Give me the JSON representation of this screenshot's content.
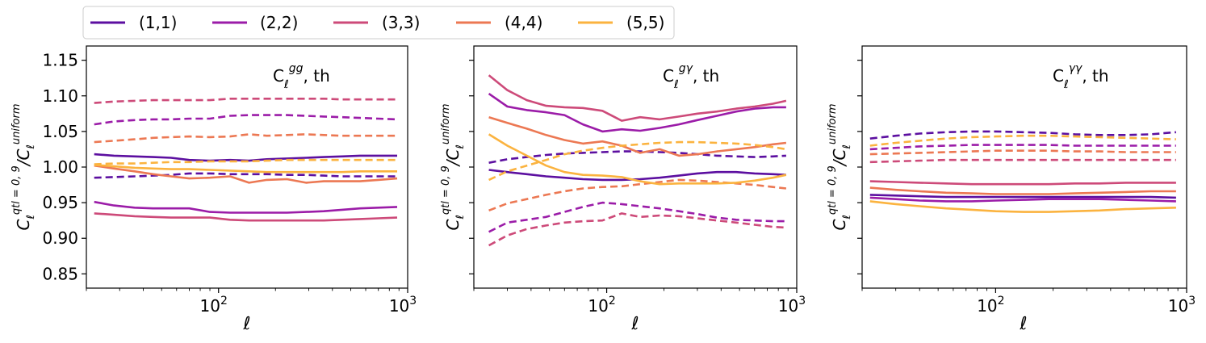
{
  "chart_data": [
    {
      "type": "line",
      "title": "C_ℓ^{gg}, th",
      "title_main": "C",
      "title_sub": "ℓ",
      "title_sup": "gg",
      "title_suffix": ", th",
      "xlabel": "ℓ",
      "ylabel_main": "C",
      "ylabel_sub": "ℓ",
      "ylabel_sup_num": "qtl = 0, 9",
      "ylabel_slash": "/C",
      "ylabel_sub2": "ℓ",
      "ylabel_sup_den": "uniform",
      "xscale": "log",
      "xlim": [
        20,
        1000
      ],
      "ylim": [
        0.83,
        1.17
      ],
      "yticks": [
        0.85,
        0.9,
        0.95,
        1.0,
        1.05,
        1.1,
        1.15
      ],
      "ytick_labels": [
        "0.85",
        "0.90",
        "0.95",
        "1.00",
        "1.05",
        "1.10",
        "1.15"
      ],
      "xtick_base": "10",
      "xtick_exps": [
        "2",
        "3"
      ],
      "x": [
        22,
        28,
        36,
        45,
        56,
        70,
        90,
        115,
        145,
        180,
        230,
        290,
        360,
        450,
        560,
        700,
        880
      ],
      "series": [
        {
          "name": "(1,1)",
          "style": "solid",
          "values": [
            1.018,
            1.016,
            1.015,
            1.014,
            1.013,
            1.01,
            1.009,
            1.01,
            1.009,
            1.011,
            1.012,
            1.013,
            1.014,
            1.015,
            1.016,
            1.016,
            1.016
          ]
        },
        {
          "name": "(1,1)",
          "style": "dashed",
          "values": [
            0.985,
            0.986,
            0.987,
            0.988,
            0.989,
            0.991,
            0.991,
            0.99,
            0.99,
            0.99,
            0.989,
            0.989,
            0.988,
            0.987,
            0.987,
            0.987,
            0.987
          ]
        },
        {
          "name": "(2,2)",
          "style": "solid",
          "values": [
            0.951,
            0.946,
            0.943,
            0.942,
            0.942,
            0.942,
            0.937,
            0.936,
            0.936,
            0.936,
            0.936,
            0.937,
            0.938,
            0.94,
            0.942,
            0.943,
            0.944
          ]
        },
        {
          "name": "(2,2)",
          "style": "dashed",
          "values": [
            1.06,
            1.064,
            1.066,
            1.067,
            1.067,
            1.068,
            1.068,
            1.072,
            1.073,
            1.073,
            1.073,
            1.072,
            1.071,
            1.07,
            1.069,
            1.068,
            1.067
          ]
        },
        {
          "name": "(3,3)",
          "style": "solid",
          "values": [
            0.935,
            0.933,
            0.931,
            0.93,
            0.929,
            0.929,
            0.929,
            0.926,
            0.925,
            0.925,
            0.925,
            0.925,
            0.925,
            0.926,
            0.927,
            0.928,
            0.929
          ]
        },
        {
          "name": "(3,3)",
          "style": "dashed",
          "values": [
            1.09,
            1.092,
            1.093,
            1.094,
            1.094,
            1.094,
            1.094,
            1.096,
            1.096,
            1.096,
            1.096,
            1.096,
            1.096,
            1.095,
            1.095,
            1.095,
            1.095
          ]
        },
        {
          "name": "(4,4)",
          "style": "solid",
          "values": [
            1.002,
            0.998,
            0.994,
            0.99,
            0.987,
            0.984,
            0.985,
            0.987,
            0.978,
            0.982,
            0.983,
            0.978,
            0.98,
            0.98,
            0.98,
            0.982,
            0.984
          ]
        },
        {
          "name": "(4,4)",
          "style": "dashed",
          "values": [
            1.035,
            1.037,
            1.039,
            1.041,
            1.042,
            1.043,
            1.042,
            1.043,
            1.046,
            1.044,
            1.045,
            1.046,
            1.045,
            1.044,
            1.044,
            1.044,
            1.044
          ]
        },
        {
          "name": "(5,5)",
          "style": "solid",
          "values": [
            1.003,
            1.001,
            0.999,
            0.998,
            0.997,
            0.997,
            0.996,
            0.995,
            0.994,
            0.993,
            0.993,
            0.993,
            0.993,
            0.993,
            0.994,
            0.994,
            0.994
          ]
        },
        {
          "name": "(5,5)",
          "style": "dashed",
          "values": [
            1.004,
            1.005,
            1.005,
            1.006,
            1.007,
            1.007,
            1.008,
            1.008,
            1.008,
            1.009,
            1.01,
            1.01,
            1.01,
            1.01,
            1.01,
            1.01,
            1.01
          ]
        }
      ]
    },
    {
      "type": "line",
      "title": "C_ℓ^{gγ}, th",
      "title_main": "C",
      "title_sub": "ℓ",
      "title_sup": "gγ",
      "title_suffix": ", th",
      "xlabel": "ℓ",
      "ylabel_main": "C",
      "ylabel_sub": "ℓ",
      "ylabel_sup_num": "qtl = 0, 9",
      "ylabel_slash": "/C",
      "ylabel_sub2": "ℓ",
      "ylabel_sup_den": "uniform",
      "xscale": "log",
      "xlim": [
        20,
        1000
      ],
      "ylim": [
        0.83,
        1.17
      ],
      "yticks": [
        0.85,
        0.9,
        0.95,
        1.0,
        1.05,
        1.1,
        1.15
      ],
      "xtick_base": "10",
      "xtick_exps": [
        "2",
        "3"
      ],
      "x": [
        24,
        30,
        38,
        48,
        60,
        75,
        95,
        120,
        150,
        190,
        240,
        300,
        380,
        480,
        600,
        750,
        880
      ],
      "series": [
        {
          "name": "(1,1)",
          "style": "solid",
          "values": [
            0.996,
            0.993,
            0.99,
            0.987,
            0.985,
            0.983,
            0.982,
            0.982,
            0.983,
            0.985,
            0.988,
            0.991,
            0.993,
            0.993,
            0.991,
            0.99,
            0.989
          ]
        },
        {
          "name": "(1,1)",
          "style": "dashed",
          "values": [
            1.006,
            1.011,
            1.014,
            1.017,
            1.019,
            1.02,
            1.021,
            1.022,
            1.022,
            1.021,
            1.02,
            1.018,
            1.016,
            1.015,
            1.014,
            1.015,
            1.016
          ]
        },
        {
          "name": "(2,2)",
          "style": "solid",
          "values": [
            1.103,
            1.085,
            1.08,
            1.077,
            1.073,
            1.06,
            1.05,
            1.053,
            1.051,
            1.055,
            1.06,
            1.066,
            1.072,
            1.078,
            1.082,
            1.084,
            1.084
          ]
        },
        {
          "name": "(2,2)",
          "style": "dashed",
          "values": [
            0.909,
            0.922,
            0.926,
            0.93,
            0.937,
            0.944,
            0.95,
            0.948,
            0.945,
            0.942,
            0.938,
            0.934,
            0.929,
            0.926,
            0.925,
            0.924,
            0.924
          ]
        },
        {
          "name": "(3,3)",
          "style": "solid",
          "values": [
            1.129,
            1.108,
            1.094,
            1.086,
            1.084,
            1.083,
            1.079,
            1.065,
            1.07,
            1.067,
            1.071,
            1.075,
            1.078,
            1.082,
            1.085,
            1.089,
            1.093
          ]
        },
        {
          "name": "(3,3)",
          "style": "dashed",
          "values": [
            0.89,
            0.904,
            0.913,
            0.918,
            0.922,
            0.924,
            0.925,
            0.935,
            0.93,
            0.932,
            0.931,
            0.928,
            0.925,
            0.922,
            0.919,
            0.916,
            0.915
          ]
        },
        {
          "name": "(4,4)",
          "style": "solid",
          "values": [
            1.07,
            1.062,
            1.054,
            1.045,
            1.038,
            1.033,
            1.036,
            1.03,
            1.02,
            1.025,
            1.016,
            1.018,
            1.022,
            1.025,
            1.028,
            1.032,
            1.034
          ]
        },
        {
          "name": "(4,4)",
          "style": "dashed",
          "values": [
            0.939,
            0.949,
            0.955,
            0.961,
            0.966,
            0.97,
            0.972,
            0.973,
            0.976,
            0.979,
            0.982,
            0.981,
            0.979,
            0.977,
            0.975,
            0.972,
            0.97
          ]
        },
        {
          "name": "(5,5)",
          "style": "solid",
          "values": [
            1.046,
            1.03,
            1.016,
            1.002,
            0.993,
            0.989,
            0.988,
            0.986,
            0.98,
            0.976,
            0.977,
            0.977,
            0.977,
            0.978,
            0.981,
            0.985,
            0.989
          ]
        },
        {
          "name": "(5,5)",
          "style": "dashed",
          "values": [
            0.982,
            0.994,
            1.002,
            1.01,
            1.018,
            1.023,
            1.027,
            1.03,
            1.032,
            1.034,
            1.035,
            1.035,
            1.034,
            1.033,
            1.031,
            1.028,
            1.025
          ]
        }
      ]
    },
    {
      "type": "line",
      "title": "C_ℓ^{γγ}, th",
      "title_main": "C",
      "title_sub": "ℓ",
      "title_sup": "γγ",
      "title_suffix": ", th",
      "xlabel": "ℓ",
      "ylabel_main": "C",
      "ylabel_sub": "ℓ",
      "ylabel_sup_num": "qtl = 0, 9",
      "ylabel_slash": "/C",
      "ylabel_sub2": "ℓ",
      "ylabel_sup_den": "uniform",
      "xscale": "log",
      "xlim": [
        20,
        1000
      ],
      "ylim": [
        0.83,
        1.17
      ],
      "yticks": [
        0.85,
        0.9,
        0.95,
        1.0,
        1.05,
        1.1,
        1.15
      ],
      "xtick_base": "10",
      "xtick_exps": [
        "2",
        "3"
      ],
      "x": [
        22,
        30,
        40,
        55,
        75,
        100,
        140,
        190,
        260,
        350,
        480,
        650,
        880
      ],
      "series": [
        {
          "name": "(1,1)",
          "style": "solid",
          "values": [
            0.961,
            0.96,
            0.959,
            0.958,
            0.958,
            0.958,
            0.958,
            0.958,
            0.958,
            0.958,
            0.958,
            0.958,
            0.957
          ]
        },
        {
          "name": "(1,1)",
          "style": "dashed",
          "values": [
            1.04,
            1.044,
            1.047,
            1.049,
            1.05,
            1.05,
            1.049,
            1.048,
            1.046,
            1.045,
            1.045,
            1.046,
            1.049
          ]
        },
        {
          "name": "(2,2)",
          "style": "solid",
          "values": [
            0.957,
            0.955,
            0.953,
            0.952,
            0.952,
            0.953,
            0.954,
            0.955,
            0.955,
            0.955,
            0.954,
            0.953,
            0.952
          ]
        },
        {
          "name": "(2,2)",
          "style": "dashed",
          "values": [
            1.025,
            1.027,
            1.029,
            1.03,
            1.031,
            1.031,
            1.031,
            1.031,
            1.03,
            1.03,
            1.03,
            1.03,
            1.03
          ]
        },
        {
          "name": "(3,3)",
          "style": "solid",
          "values": [
            0.98,
            0.979,
            0.978,
            0.977,
            0.976,
            0.976,
            0.976,
            0.976,
            0.977,
            0.977,
            0.978,
            0.978,
            0.978
          ]
        },
        {
          "name": "(3,3)",
          "style": "dashed",
          "values": [
            1.007,
            1.008,
            1.009,
            1.01,
            1.01,
            1.01,
            1.01,
            1.01,
            1.01,
            1.01,
            1.01,
            1.01,
            1.01
          ]
        },
        {
          "name": "(4,4)",
          "style": "solid",
          "values": [
            0.971,
            0.968,
            0.966,
            0.964,
            0.963,
            0.962,
            0.962,
            0.962,
            0.963,
            0.964,
            0.965,
            0.966,
            0.966
          ]
        },
        {
          "name": "(4,4)",
          "style": "dashed",
          "values": [
            1.018,
            1.019,
            1.02,
            1.021,
            1.022,
            1.023,
            1.023,
            1.023,
            1.022,
            1.022,
            1.021,
            1.021,
            1.021
          ]
        },
        {
          "name": "(5,5)",
          "style": "solid",
          "values": [
            0.952,
            0.948,
            0.945,
            0.942,
            0.94,
            0.938,
            0.937,
            0.937,
            0.938,
            0.939,
            0.941,
            0.942,
            0.943
          ]
        },
        {
          "name": "(5,5)",
          "style": "dashed",
          "values": [
            1.03,
            1.034,
            1.037,
            1.04,
            1.042,
            1.043,
            1.044,
            1.044,
            1.043,
            1.042,
            1.041,
            1.04,
            1.039
          ]
        }
      ]
    }
  ],
  "legend": {
    "placement": "top-left",
    "entries": [
      "(1,1)",
      "(2,2)",
      "(3,3)",
      "(4,4)",
      "(5,5)"
    ]
  },
  "colors": {
    "(1,1)": "#5c0fa0",
    "(2,2)": "#9b1ca8",
    "(3,3)": "#cd4a79",
    "(4,4)": "#ec7853",
    "(5,5)": "#fbb33f",
    "axis": "#000000",
    "background": "#ffffff"
  }
}
